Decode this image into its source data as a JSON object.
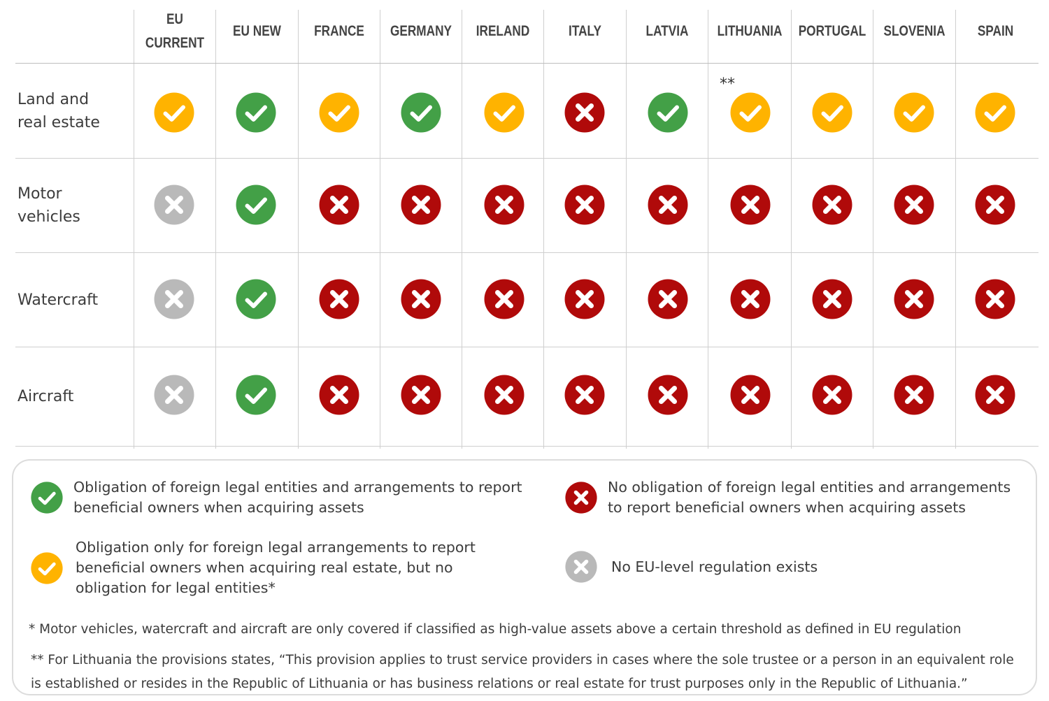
{
  "columns": [
    "EU\nCURRENT",
    "EU NEW",
    "FRANCE",
    "GERMANY",
    "IRELAND",
    "ITALY",
    "LATVIA",
    "LITHUANIA",
    "PORTUGAL",
    "SLOVENIA",
    "SPAIN"
  ],
  "rows": [
    {
      "label": "Land and\nreal estate",
      "values": [
        "yellow",
        "green",
        "yellow",
        "green",
        "yellow",
        "red",
        "green",
        "yellow",
        "yellow",
        "yellow",
        "yellow"
      ]
    },
    {
      "label": "Motor\nvehicles",
      "values": [
        "grey",
        "green",
        "red",
        "red",
        "red",
        "red",
        "red",
        "red",
        "red",
        "red",
        "red"
      ]
    },
    {
      "label": "Watercraft",
      "values": [
        "grey",
        "green",
        "red",
        "red",
        "red",
        "red",
        "red",
        "red",
        "red",
        "red",
        "red"
      ]
    },
    {
      "label": "Aircraft",
      "values": [
        "grey",
        "green",
        "red",
        "red",
        "red",
        "red",
        "red",
        "red",
        "red",
        "red",
        "red"
      ]
    }
  ],
  "lithuania_note_mark": "**",
  "status_colors": {
    "green": "#43a047",
    "yellow": "#ffb300",
    "red": "#b00a0a",
    "grey": "#b9b9b9"
  },
  "status_icons": {
    "green": "check-icon",
    "yellow": "check-icon",
    "red": "cross-icon",
    "grey": "cross-icon"
  },
  "legend": {
    "green": "Obligation of foreign legal entities and arrangements to report beneficial owners when acquiring assets",
    "red": "No obligation of foreign legal entities and arrangements to report beneficial owners when acquiring assets",
    "yellow": "Obligation only for foreign legal arrangements to report beneficial owners when acquiring real estate, but no obligation for legal entities*",
    "grey": "No EU-level regulation exists"
  },
  "footnotes": {
    "single": "* Motor vehicles, watercraft and aircraft are only covered if classified as high-value assets above a certain threshold as defined in EU regulation",
    "double": "** For Lithuania the provisions states, “This provision applies to trust service providers in cases where the sole trustee or a person in an equivalent role is established or resides in the Republic of Lithuania or has business relations or real estate for trust purposes only in the Republic of Lithuania.”"
  }
}
